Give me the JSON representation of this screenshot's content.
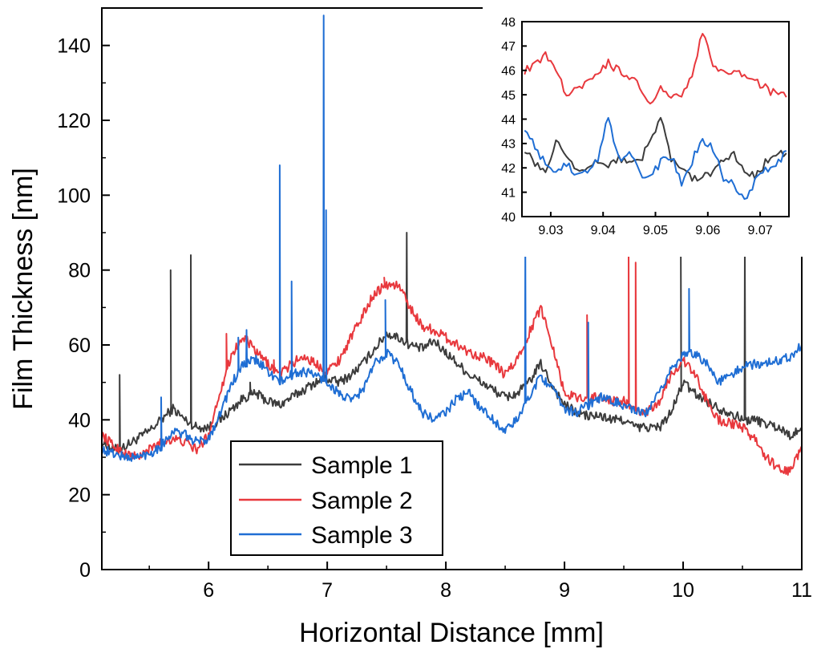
{
  "chart_data": [
    {
      "type": "line",
      "title": "",
      "xlabel": "Horizontal Distance [mm]",
      "ylabel": "Film Thickness [nm]",
      "xlim": [
        5.1,
        11.0
      ],
      "ylim": [
        0,
        150
      ],
      "xticks": [
        6,
        7,
        8,
        9,
        10,
        11
      ],
      "yticks": [
        0,
        20,
        40,
        60,
        80,
        100,
        120,
        140
      ],
      "grid": false,
      "legend_placement": "bottom-left",
      "series": [
        {
          "name": "Sample 1",
          "color": "#3c3c3c",
          "x": [
            5.1,
            5.2,
            5.3,
            5.4,
            5.5,
            5.6,
            5.7,
            5.8,
            5.9,
            6.0,
            6.1,
            6.2,
            6.3,
            6.4,
            6.5,
            6.6,
            6.7,
            6.8,
            6.9,
            7.0,
            7.1,
            7.2,
            7.3,
            7.4,
            7.5,
            7.6,
            7.7,
            7.8,
            7.9,
            8.0,
            8.1,
            8.2,
            8.3,
            8.4,
            8.5,
            8.6,
            8.7,
            8.8,
            8.9,
            9.0,
            9.1,
            9.2,
            9.3,
            9.4,
            9.5,
            9.6,
            9.7,
            9.8,
            9.9,
            10.0,
            10.1,
            10.2,
            10.3,
            10.4,
            10.5,
            10.6,
            10.7,
            10.8,
            10.9,
            11.0
          ],
          "y": [
            34,
            32,
            33,
            35,
            37,
            40,
            43,
            40,
            38,
            38,
            40,
            43,
            46,
            47,
            45,
            44,
            46,
            48,
            50,
            51,
            50,
            52,
            55,
            59,
            63,
            62,
            60,
            59,
            61,
            58,
            55,
            52,
            50,
            48,
            46,
            47,
            50,
            55,
            49,
            44,
            42,
            41,
            41,
            40,
            40,
            38,
            38,
            38,
            42,
            50,
            47,
            45,
            43,
            42,
            40,
            40,
            39,
            38,
            36,
            37
          ],
          "spikes": [
            [
              5.25,
              52
            ],
            [
              5.68,
              80
            ],
            [
              5.85,
              84
            ],
            [
              6.1,
              42
            ],
            [
              6.35,
              50
            ],
            [
              7.67,
              90
            ],
            [
              9.98,
              87
            ],
            [
              10.52,
              87
            ]
          ]
        },
        {
          "name": "Sample 2",
          "color": "#e8383d",
          "x": [
            5.1,
            5.2,
            5.3,
            5.4,
            5.5,
            5.6,
            5.7,
            5.8,
            5.9,
            6.0,
            6.1,
            6.2,
            6.3,
            6.4,
            6.5,
            6.6,
            6.7,
            6.8,
            6.9,
            7.0,
            7.1,
            7.2,
            7.3,
            7.4,
            7.5,
            7.6,
            7.7,
            7.8,
            7.9,
            8.0,
            8.1,
            8.2,
            8.3,
            8.4,
            8.5,
            8.6,
            8.7,
            8.8,
            8.9,
            9.0,
            9.1,
            9.2,
            9.3,
            9.4,
            9.5,
            9.6,
            9.7,
            9.8,
            9.9,
            10.0,
            10.1,
            10.2,
            10.3,
            10.4,
            10.5,
            10.6,
            10.7,
            10.8,
            10.9,
            11.0
          ],
          "y": [
            36,
            33,
            31,
            30,
            32,
            34,
            35,
            34,
            32,
            36,
            48,
            58,
            62,
            58,
            55,
            52,
            55,
            57,
            55,
            53,
            56,
            62,
            68,
            74,
            76,
            76,
            70,
            65,
            64,
            62,
            60,
            58,
            57,
            55,
            52,
            56,
            63,
            70,
            60,
            47,
            46,
            46,
            46,
            45,
            45,
            42,
            42,
            45,
            52,
            56,
            52,
            45,
            40,
            39,
            38,
            35,
            30,
            27,
            26,
            33
          ],
          "spikes": [
            [
              6.15,
              63
            ],
            [
              6.55,
              56
            ],
            [
              7.48,
              78
            ],
            [
              9.19,
              68
            ],
            [
              9.54,
              88
            ],
            [
              9.6,
              82
            ]
          ]
        },
        {
          "name": "Sample 3",
          "color": "#1f6ed4",
          "x": [
            5.1,
            5.2,
            5.3,
            5.4,
            5.5,
            5.6,
            5.7,
            5.8,
            5.9,
            6.0,
            6.1,
            6.2,
            6.3,
            6.4,
            6.5,
            6.6,
            6.7,
            6.8,
            6.9,
            7.0,
            7.1,
            7.2,
            7.3,
            7.4,
            7.5,
            7.6,
            7.7,
            7.8,
            7.9,
            8.0,
            8.1,
            8.2,
            8.3,
            8.4,
            8.5,
            8.6,
            8.7,
            8.8,
            8.9,
            9.0,
            9.1,
            9.2,
            9.3,
            9.4,
            9.5,
            9.6,
            9.7,
            9.8,
            9.9,
            10.0,
            10.1,
            10.2,
            10.3,
            10.4,
            10.5,
            10.6,
            10.7,
            10.8,
            10.9,
            11.0
          ],
          "y": [
            32,
            31,
            30,
            30,
            31,
            33,
            37,
            36,
            34,
            35,
            42,
            50,
            55,
            56,
            53,
            50,
            52,
            53,
            52,
            50,
            47,
            45,
            48,
            55,
            58,
            55,
            48,
            42,
            40,
            42,
            46,
            47,
            43,
            40,
            37,
            40,
            46,
            52,
            48,
            43,
            42,
            44,
            46,
            45,
            44,
            42,
            42,
            47,
            54,
            57,
            58,
            55,
            50,
            52,
            54,
            55,
            55,
            56,
            57,
            60
          ],
          "spikes": [
            [
              5.6,
              46
            ],
            [
              6.25,
              62
            ],
            [
              6.32,
              64
            ],
            [
              6.6,
              108
            ],
            [
              6.7,
              77
            ],
            [
              6.97,
              148
            ],
            [
              6.99,
              96
            ],
            [
              7.49,
              72
            ],
            [
              8.67,
              87
            ],
            [
              9.2,
              66
            ],
            [
              10.05,
              75
            ]
          ]
        }
      ]
    },
    {
      "type": "line",
      "title": "",
      "inset": true,
      "xlim": [
        9.0245,
        9.0755
      ],
      "ylim": [
        40,
        48
      ],
      "xticks": [
        "9.03",
        "9.04",
        "9.05",
        "9.06",
        "9.07"
      ],
      "yticks": [
        40,
        41,
        42,
        43,
        44,
        45,
        46,
        47,
        48
      ],
      "grid": false,
      "series": [
        {
          "name": "Sample 1",
          "color": "#3c3c3c",
          "x": [
            9.025,
            9.027,
            9.029,
            9.031,
            9.033,
            9.035,
            9.037,
            9.039,
            9.041,
            9.043,
            9.045,
            9.047,
            9.049,
            9.051,
            9.053,
            9.055,
            9.057,
            9.059,
            9.061,
            9.063,
            9.065,
            9.067,
            9.069,
            9.071,
            9.073,
            9.075
          ],
          "y": [
            42.8,
            42.2,
            41.9,
            43.1,
            42.4,
            41.8,
            41.9,
            42.3,
            42.0,
            42.4,
            42.1,
            42.3,
            43.0,
            44.1,
            42.3,
            42.0,
            41.6,
            41.6,
            41.8,
            42.3,
            42.5,
            41.9,
            41.7,
            42.2,
            42.6,
            42.6
          ]
        },
        {
          "name": "Sample 2",
          "color": "#e8383d",
          "x": [
            9.025,
            9.027,
            9.029,
            9.031,
            9.033,
            9.035,
            9.037,
            9.039,
            9.041,
            9.043,
            9.045,
            9.047,
            9.049,
            9.051,
            9.053,
            9.055,
            9.057,
            9.059,
            9.061,
            9.063,
            9.065,
            9.067,
            9.069,
            9.071,
            9.073,
            9.075
          ],
          "y": [
            46.0,
            46.3,
            46.6,
            46.0,
            45.0,
            45.2,
            45.6,
            45.8,
            46.3,
            46.0,
            45.7,
            45.4,
            44.7,
            45.3,
            44.8,
            45.0,
            45.9,
            47.5,
            46.2,
            45.9,
            45.9,
            45.8,
            45.6,
            45.3,
            45.0,
            44.9
          ]
        },
        {
          "name": "Sample 3",
          "color": "#1f6ed4",
          "x": [
            9.025,
            9.027,
            9.029,
            9.031,
            9.033,
            9.035,
            9.037,
            9.039,
            9.041,
            9.043,
            9.045,
            9.047,
            9.049,
            9.051,
            9.053,
            9.055,
            9.057,
            9.059,
            9.061,
            9.063,
            9.065,
            9.067,
            9.069,
            9.071,
            9.073,
            9.075
          ],
          "y": [
            43.7,
            42.9,
            42.1,
            41.9,
            42.2,
            41.7,
            41.9,
            42.4,
            44.1,
            42.3,
            42.6,
            41.8,
            41.6,
            42.2,
            42.5,
            41.4,
            42.3,
            43.2,
            42.8,
            41.6,
            41.3,
            40.6,
            41.4,
            41.9,
            42.1,
            42.7
          ]
        }
      ]
    }
  ]
}
